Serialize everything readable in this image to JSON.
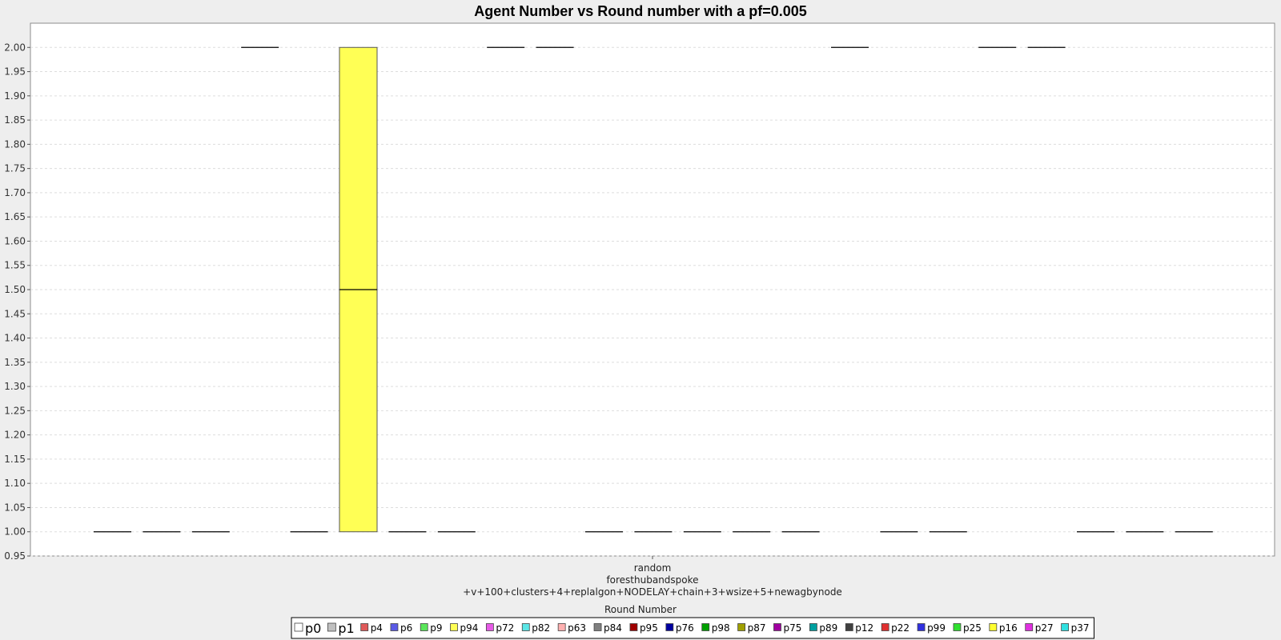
{
  "chart_data": {
    "type": "box",
    "title": "Agent Number vs Round number with a pf=0.005",
    "xlabel": "Round Number",
    "ylabel": "",
    "ylim": [
      0.95,
      2.05
    ],
    "y_ticks": [
      "0.95",
      "1.00",
      "1.05",
      "1.10",
      "1.15",
      "1.20",
      "1.25",
      "1.30",
      "1.35",
      "1.40",
      "1.45",
      "1.50",
      "1.55",
      "1.60",
      "1.65",
      "1.70",
      "1.75",
      "1.80",
      "1.85",
      "1.90",
      "1.95",
      "2.00"
    ],
    "grid": true,
    "legend_position": "bottom",
    "category_label_lines": [
      "random",
      "foresthubandspoke",
      "+v+100+clusters+4+replalgon+NODELAY+chain+3+wsize+5+newagbynode"
    ],
    "series": [
      {
        "name": "p0",
        "color": "#ffffff",
        "q1": 1.0,
        "median": 1.0,
        "q3": 1.0
      },
      {
        "name": "p1",
        "color": "#c0c0c0",
        "q1": 1.0,
        "median": 1.0,
        "q3": 1.0
      },
      {
        "name": "p4",
        "color": "#e05a5a",
        "q1": 1.0,
        "median": 1.0,
        "q3": 1.0
      },
      {
        "name": "p6",
        "color": "#5a5ae6",
        "q1": 2.0,
        "median": 2.0,
        "q3": 2.0
      },
      {
        "name": "p9",
        "color": "#5ae65a",
        "q1": 1.0,
        "median": 1.0,
        "q3": 1.0
      },
      {
        "name": "p94",
        "color": "#ffff55",
        "q1": 1.0,
        "median": 1.5,
        "q3": 2.0
      },
      {
        "name": "p72",
        "color": "#e65ae6",
        "q1": 1.0,
        "median": 1.0,
        "q3": 1.0
      },
      {
        "name": "p82",
        "color": "#5ae6e6",
        "q1": 1.0,
        "median": 1.0,
        "q3": 1.0
      },
      {
        "name": "p63",
        "color": "#ffb0b0",
        "q1": 2.0,
        "median": 2.0,
        "q3": 2.0
      },
      {
        "name": "p84",
        "color": "#808080",
        "q1": 2.0,
        "median": 2.0,
        "q3": 2.0
      },
      {
        "name": "p95",
        "color": "#a00000",
        "q1": 1.0,
        "median": 1.0,
        "q3": 1.0
      },
      {
        "name": "p76",
        "color": "#0000a0",
        "q1": 1.0,
        "median": 1.0,
        "q3": 1.0
      },
      {
        "name": "p98",
        "color": "#00a000",
        "q1": 1.0,
        "median": 1.0,
        "q3": 1.0
      },
      {
        "name": "p87",
        "color": "#a0a000",
        "q1": 1.0,
        "median": 1.0,
        "q3": 1.0
      },
      {
        "name": "p75",
        "color": "#a000a0",
        "q1": 1.0,
        "median": 1.0,
        "q3": 1.0
      },
      {
        "name": "p89",
        "color": "#00a0a0",
        "q1": 2.0,
        "median": 2.0,
        "q3": 2.0
      },
      {
        "name": "p12",
        "color": "#404040",
        "q1": 1.0,
        "median": 1.0,
        "q3": 1.0
      },
      {
        "name": "p22",
        "color": "#e03030",
        "q1": 1.0,
        "median": 1.0,
        "q3": 1.0
      },
      {
        "name": "p99",
        "color": "#3030e0",
        "q1": 2.0,
        "median": 2.0,
        "q3": 2.0
      },
      {
        "name": "p25",
        "color": "#30e030",
        "q1": 2.0,
        "median": 2.0,
        "q3": 2.0
      },
      {
        "name": "p16",
        "color": "#ffff30",
        "q1": 1.0,
        "median": 1.0,
        "q3": 1.0
      },
      {
        "name": "p27",
        "color": "#e030e0",
        "q1": 1.0,
        "median": 1.0,
        "q3": 1.0
      },
      {
        "name": "p37",
        "color": "#30e0e0",
        "q1": 1.0,
        "median": 1.0,
        "q3": 1.0
      }
    ]
  }
}
